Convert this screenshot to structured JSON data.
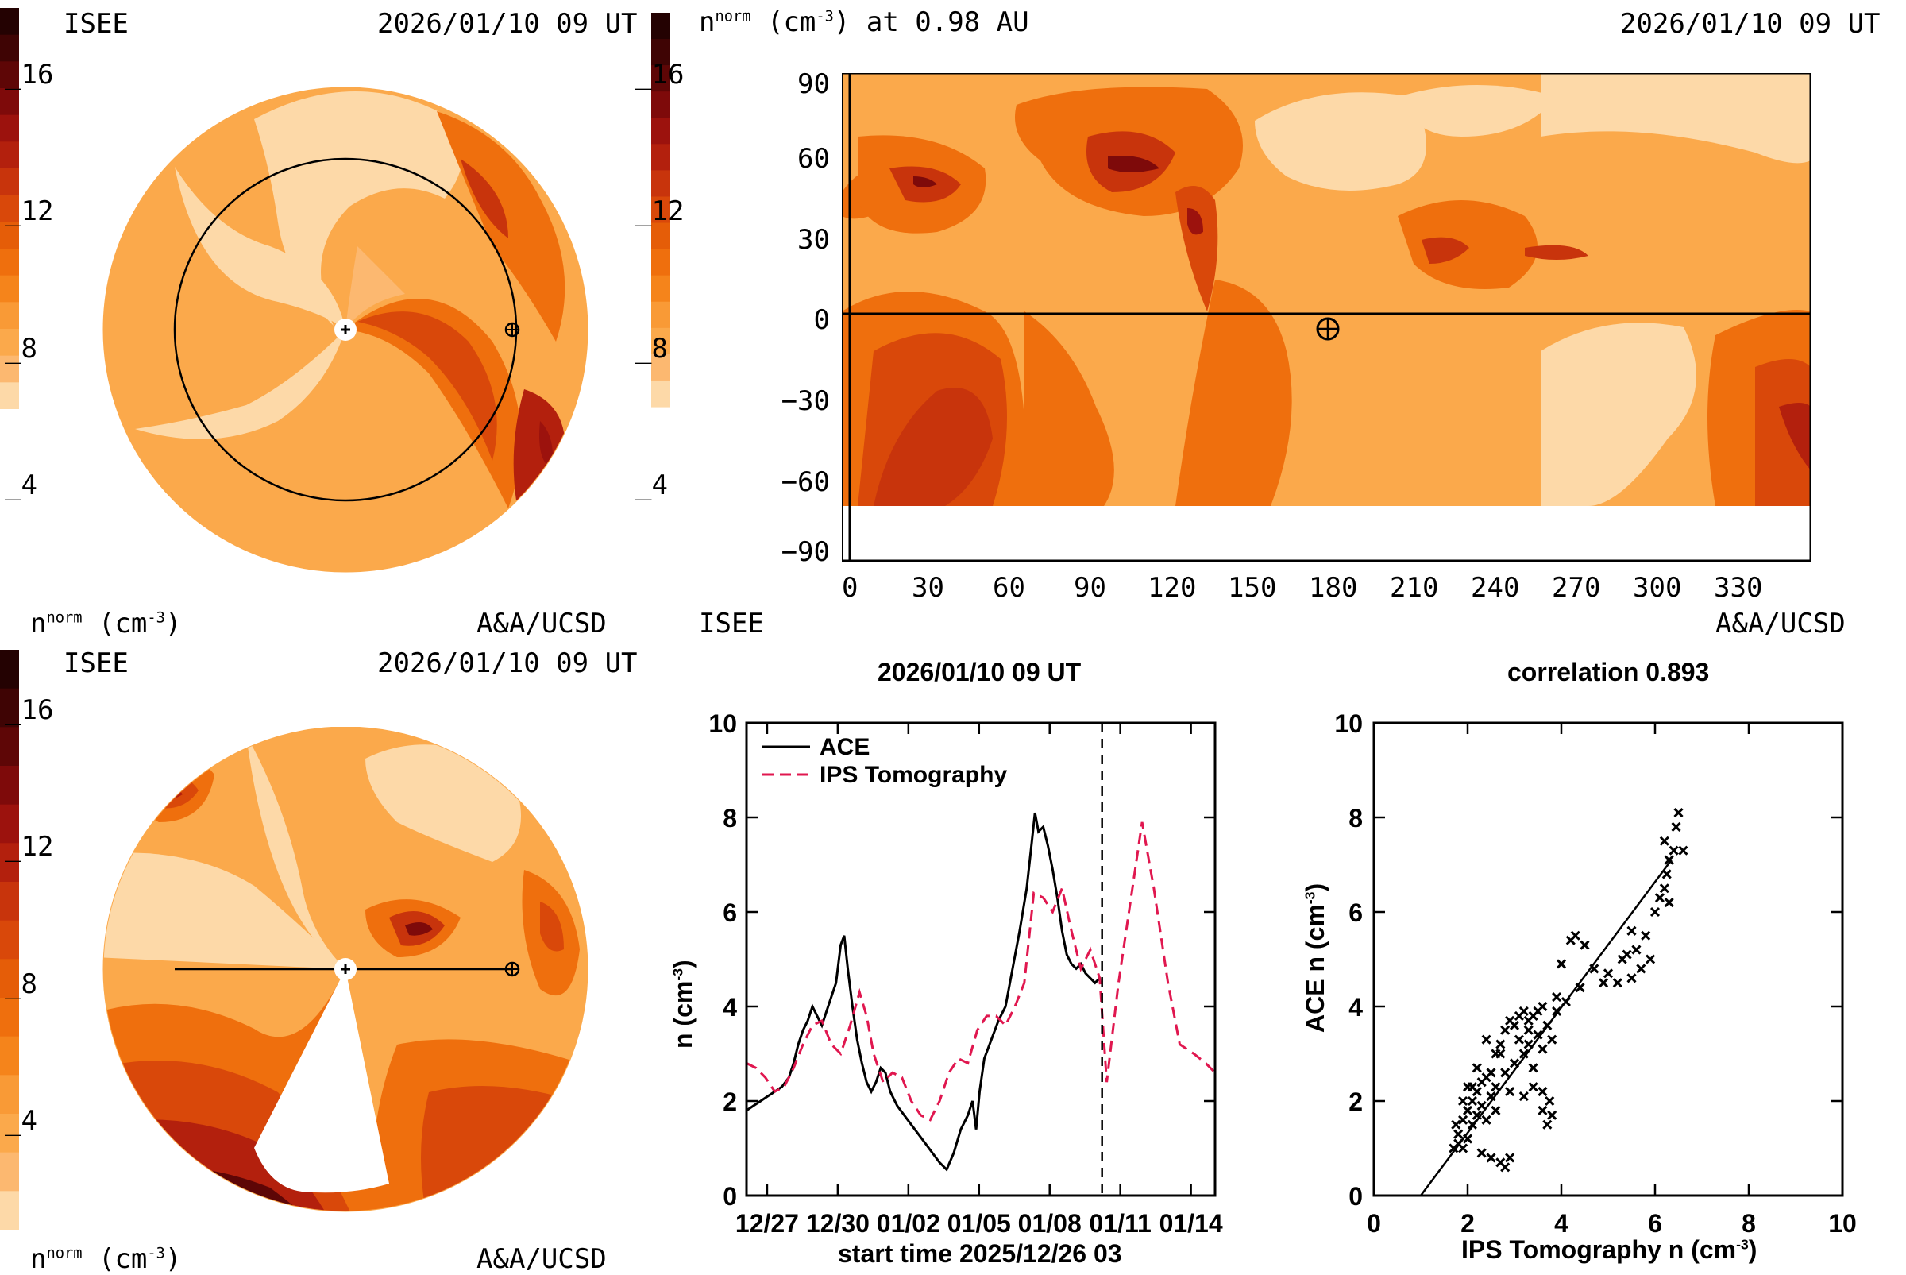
{
  "colorbar_palette": [
    "#fdd9a8",
    "#fcb870",
    "#fba94b",
    "#f99a36",
    "#f5841b",
    "#ef6f0d",
    "#e55d08",
    "#d9480a",
    "#c8340c",
    "#b3200d",
    "#9c120d",
    "#7e0a0a",
    "#5e0606",
    "#3f0404",
    "#240202"
  ],
  "panels": {
    "top_left": {
      "institution": "ISEE",
      "timestamp": "2026/01/10 09 UT",
      "credit": "A&A/UCSD",
      "cbar_label_main": "n",
      "cbar_label_sup": "norm",
      "cbar_label_unit": "(cm",
      "cbar_label_unit_sup": "-3",
      "cbar_label_close": ")",
      "cbar_ticks": [
        "16",
        "12",
        "8",
        "4"
      ]
    },
    "top_right": {
      "title_main": "n",
      "title_sup": "norm",
      "title_unit": "(cm",
      "title_unit_sup": "-3",
      "title_rest": ") at 0.98 AU",
      "timestamp": "2026/01/10 09 UT",
      "institution": "ISEE",
      "credit": "A&A/UCSD",
      "cbar_ticks": [
        "16",
        "12",
        "8",
        "4"
      ],
      "x_ticks": [
        "0",
        "30",
        "60",
        "90",
        "120",
        "150",
        "180",
        "210",
        "240",
        "270",
        "300",
        "330"
      ],
      "y_ticks": [
        "90",
        "60",
        "30",
        "0",
        "−30",
        "−60",
        "−90"
      ]
    },
    "bottom_left": {
      "institution": "ISEE",
      "timestamp": "2026/01/10 09 UT",
      "credit": "A&A/UCSD",
      "cbar_label_main": "n",
      "cbar_label_sup": "norm",
      "cbar_label_unit": "(cm",
      "cbar_label_unit_sup": "-3",
      "cbar_label_close": ")",
      "cbar_ticks": [
        "16",
        "12",
        "8",
        "4"
      ]
    }
  },
  "chart_data": [
    {
      "type": "line",
      "title": "2026/01/10 09 UT",
      "xlabel": "start time 2025/12/26 03",
      "ylabel": "n (cm",
      "ylabel_sup": "-3",
      "ylabel_close": ")",
      "ylim": [
        0,
        10
      ],
      "xlim_days": [
        0,
        19.9
      ],
      "x_tick_labels": [
        "12/27",
        "12/30",
        "01/02",
        "01/05",
        "01/08",
        "01/11",
        "01/14"
      ],
      "x_tick_days": [
        0.875,
        3.875,
        6.875,
        9.875,
        12.875,
        15.875,
        18.875
      ],
      "y_tick_labels": [
        "0",
        "2",
        "4",
        "6",
        "8",
        "10"
      ],
      "y_ticks": [
        0,
        2,
        4,
        6,
        8,
        10
      ],
      "marker_day": 15.1,
      "series": [
        {
          "name": "ACE",
          "color": "#000000",
          "dash": "solid",
          "points": [
            [
              0.0,
              1.8
            ],
            [
              0.3,
              1.9
            ],
            [
              0.6,
              2.0
            ],
            [
              0.9,
              2.1
            ],
            [
              1.2,
              2.2
            ],
            [
              1.5,
              2.3
            ],
            [
              1.8,
              2.5
            ],
            [
              2.0,
              2.8
            ],
            [
              2.2,
              3.2
            ],
            [
              2.4,
              3.5
            ],
            [
              2.6,
              3.7
            ],
            [
              2.8,
              4.0
            ],
            [
              3.0,
              3.8
            ],
            [
              3.2,
              3.6
            ],
            [
              3.4,
              3.9
            ],
            [
              3.6,
              4.2
            ],
            [
              3.8,
              4.5
            ],
            [
              4.0,
              5.3
            ],
            [
              4.15,
              5.5
            ],
            [
              4.3,
              4.8
            ],
            [
              4.5,
              4.0
            ],
            [
              4.7,
              3.3
            ],
            [
              4.9,
              2.8
            ],
            [
              5.1,
              2.4
            ],
            [
              5.3,
              2.2
            ],
            [
              5.5,
              2.4
            ],
            [
              5.7,
              2.7
            ],
            [
              5.9,
              2.6
            ],
            [
              6.1,
              2.2
            ],
            [
              6.4,
              1.9
            ],
            [
              6.7,
              1.7
            ],
            [
              7.0,
              1.5
            ],
            [
              7.3,
              1.3
            ],
            [
              7.6,
              1.1
            ],
            [
              7.9,
              0.9
            ],
            [
              8.2,
              0.7
            ],
            [
              8.5,
              0.55
            ],
            [
              8.8,
              0.9
            ],
            [
              9.1,
              1.4
            ],
            [
              9.4,
              1.7
            ],
            [
              9.6,
              2.0
            ],
            [
              9.75,
              1.4
            ],
            [
              9.9,
              2.2
            ],
            [
              10.1,
              2.9
            ],
            [
              10.4,
              3.3
            ],
            [
              10.7,
              3.7
            ],
            [
              11.0,
              4.0
            ],
            [
              11.3,
              4.8
            ],
            [
              11.6,
              5.6
            ],
            [
              11.9,
              6.5
            ],
            [
              12.1,
              7.4
            ],
            [
              12.25,
              8.1
            ],
            [
              12.4,
              7.7
            ],
            [
              12.6,
              7.8
            ],
            [
              12.8,
              7.4
            ],
            [
              13.0,
              6.9
            ],
            [
              13.2,
              6.3
            ],
            [
              13.4,
              5.6
            ],
            [
              13.6,
              5.1
            ],
            [
              13.8,
              4.9
            ],
            [
              14.0,
              4.8
            ],
            [
              14.2,
              4.9
            ],
            [
              14.4,
              4.7
            ],
            [
              14.6,
              4.6
            ],
            [
              14.8,
              4.5
            ],
            [
              15.0,
              4.6
            ]
          ]
        },
        {
          "name": "IPS Tomography",
          "color": "#e0174f",
          "dash": "dashed",
          "points": [
            [
              0.0,
              2.8
            ],
            [
              0.4,
              2.7
            ],
            [
              0.8,
              2.5
            ],
            [
              1.2,
              2.2
            ],
            [
              1.6,
              2.3
            ],
            [
              2.0,
              2.7
            ],
            [
              2.4,
              3.2
            ],
            [
              2.8,
              3.6
            ],
            [
              3.2,
              3.7
            ],
            [
              3.6,
              3.2
            ],
            [
              4.0,
              3.0
            ],
            [
              4.4,
              3.6
            ],
            [
              4.8,
              4.3
            ],
            [
              5.1,
              3.8
            ],
            [
              5.4,
              3.0
            ],
            [
              5.8,
              2.4
            ],
            [
              6.2,
              2.6
            ],
            [
              6.6,
              2.5
            ],
            [
              7.0,
              2.0
            ],
            [
              7.4,
              1.7
            ],
            [
              7.8,
              1.6
            ],
            [
              8.2,
              2.0
            ],
            [
              8.6,
              2.6
            ],
            [
              9.0,
              2.9
            ],
            [
              9.4,
              2.8
            ],
            [
              9.8,
              3.5
            ],
            [
              10.2,
              3.8
            ],
            [
              10.6,
              3.8
            ],
            [
              11.0,
              3.6
            ],
            [
              11.4,
              4.0
            ],
            [
              11.8,
              4.5
            ],
            [
              12.2,
              6.4
            ],
            [
              12.6,
              6.3
            ],
            [
              13.0,
              6.0
            ],
            [
              13.4,
              6.5
            ],
            [
              13.8,
              5.6
            ],
            [
              14.2,
              4.8
            ],
            [
              14.6,
              5.2
            ],
            [
              15.0,
              4.6
            ],
            [
              15.3,
              2.4
            ],
            [
              15.8,
              4.5
            ],
            [
              16.3,
              6.2
            ],
            [
              16.8,
              7.9
            ],
            [
              17.3,
              6.5
            ],
            [
              17.9,
              4.5
            ],
            [
              18.4,
              3.2
            ],
            [
              19.0,
              3.0
            ],
            [
              19.5,
              2.8
            ],
            [
              19.9,
              2.6
            ]
          ]
        }
      ],
      "legend_placement": "top-left"
    },
    {
      "type": "scatter",
      "title": "correlation 0.893",
      "xlabel": "IPS Tomography n (cm",
      "xlabel_sup": "-3",
      "xlabel_close": ")",
      "ylabel": "ACE n (cm",
      "ylabel_sup": "-3",
      "ylabel_close": ")",
      "xlim": [
        0,
        10
      ],
      "ylim": [
        0,
        10
      ],
      "x_tick_labels": [
        "0",
        "2",
        "4",
        "6",
        "8",
        "10"
      ],
      "y_tick_labels": [
        "0",
        "2",
        "4",
        "6",
        "8",
        "10"
      ],
      "ticks": [
        0,
        2,
        4,
        6,
        8,
        10
      ],
      "fit_line": [
        [
          1.0,
          0.0
        ],
        [
          6.35,
          7.1
        ]
      ],
      "points": [
        [
          1.7,
          1.0
        ],
        [
          1.8,
          1.3
        ],
        [
          1.75,
          1.5
        ],
        [
          1.9,
          1.6
        ],
        [
          2.0,
          1.8
        ],
        [
          2.1,
          2.0
        ],
        [
          2.2,
          2.2
        ],
        [
          2.0,
          2.3
        ],
        [
          2.3,
          2.4
        ],
        [
          2.4,
          2.5
        ],
        [
          2.2,
          2.7
        ],
        [
          2.5,
          2.6
        ],
        [
          2.6,
          3.0
        ],
        [
          2.7,
          3.2
        ],
        [
          2.4,
          3.3
        ],
        [
          2.8,
          3.5
        ],
        [
          2.9,
          3.7
        ],
        [
          3.0,
          3.6
        ],
        [
          3.1,
          3.8
        ],
        [
          3.2,
          3.9
        ],
        [
          3.3,
          3.7
        ],
        [
          3.4,
          3.8
        ],
        [
          3.5,
          3.9
        ],
        [
          3.6,
          4.0
        ],
        [
          3.7,
          3.6
        ],
        [
          3.5,
          3.4
        ],
        [
          3.3,
          3.2
        ],
        [
          3.2,
          3.0
        ],
        [
          3.0,
          2.8
        ],
        [
          2.8,
          2.6
        ],
        [
          2.6,
          2.3
        ],
        [
          2.5,
          2.1
        ],
        [
          2.3,
          1.9
        ],
        [
          2.2,
          1.7
        ],
        [
          2.1,
          1.5
        ],
        [
          2.0,
          1.2
        ],
        [
          1.9,
          1.0
        ],
        [
          2.3,
          0.9
        ],
        [
          2.5,
          0.8
        ],
        [
          2.7,
          0.7
        ],
        [
          2.8,
          0.6
        ],
        [
          2.9,
          0.8
        ],
        [
          3.2,
          2.1
        ],
        [
          3.4,
          2.3
        ],
        [
          3.6,
          2.2
        ],
        [
          3.75,
          2.0
        ],
        [
          3.8,
          1.7
        ],
        [
          3.7,
          1.5
        ],
        [
          3.6,
          1.8
        ],
        [
          3.9,
          4.2
        ],
        [
          4.2,
          5.4
        ],
        [
          4.3,
          5.5
        ],
        [
          4.0,
          4.9
        ],
        [
          4.5,
          5.3
        ],
        [
          4.7,
          4.8
        ],
        [
          5.2,
          4.5
        ],
        [
          5.3,
          5.0
        ],
        [
          5.4,
          5.1
        ],
        [
          5.5,
          4.6
        ],
        [
          5.6,
          5.2
        ],
        [
          5.8,
          5.5
        ],
        [
          6.0,
          6.0
        ],
        [
          6.1,
          6.3
        ],
        [
          6.2,
          6.5
        ],
        [
          6.25,
          6.8
        ],
        [
          6.3,
          7.1
        ],
        [
          6.2,
          7.5
        ],
        [
          6.4,
          7.3
        ],
        [
          6.5,
          8.1
        ],
        [
          6.45,
          7.8
        ],
        [
          6.6,
          7.3
        ],
        [
          6.3,
          6.2
        ],
        [
          5.9,
          5.0
        ],
        [
          5.7,
          4.8
        ],
        [
          4.9,
          4.5
        ],
        [
          4.1,
          4.1
        ],
        [
          3.8,
          3.3
        ],
        [
          3.4,
          2.7
        ],
        [
          2.9,
          2.2
        ],
        [
          2.6,
          1.8
        ],
        [
          2.4,
          1.6
        ],
        [
          1.8,
          1.1
        ],
        [
          1.9,
          2.0
        ],
        [
          2.1,
          2.3
        ],
        [
          2.7,
          3.0
        ],
        [
          3.1,
          3.3
        ],
        [
          3.3,
          3.5
        ],
        [
          3.6,
          3.1
        ],
        [
          3.9,
          3.9
        ],
        [
          4.4,
          4.4
        ],
        [
          5.0,
          4.7
        ],
        [
          5.5,
          5.6
        ]
      ]
    }
  ]
}
